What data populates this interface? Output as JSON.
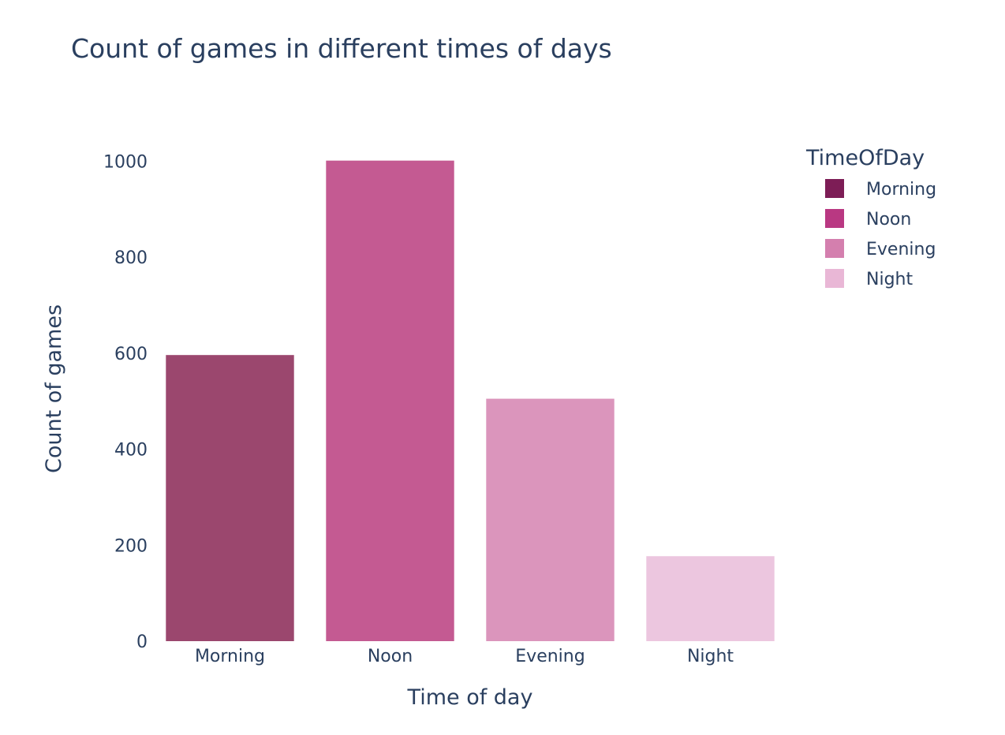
{
  "chart_data": {
    "type": "bar",
    "title": "Count of games in different times of days",
    "xlabel": "Time of day",
    "ylabel": "Count of games",
    "categories": [
      "Morning",
      "Noon",
      "Evening",
      "Night"
    ],
    "values": [
      596,
      1001,
      505,
      177
    ],
    "ylim": [
      0,
      1053
    ],
    "yticks": [
      0,
      200,
      400,
      600,
      800,
      1000
    ],
    "grid": false,
    "legend": {
      "title": "TimeOfDay",
      "placement": "top-right",
      "entries": [
        "Morning",
        "Noon",
        "Evening",
        "Night"
      ]
    },
    "colors": {
      "bars": [
        "#9b476e",
        "#c45a92",
        "#db95bc",
        "#ecc6df"
      ],
      "legend_swatches": [
        "#7d1d56",
        "#b93882",
        "#d47fae",
        "#e9b7d6"
      ],
      "text": "#2a3f5f"
    }
  }
}
